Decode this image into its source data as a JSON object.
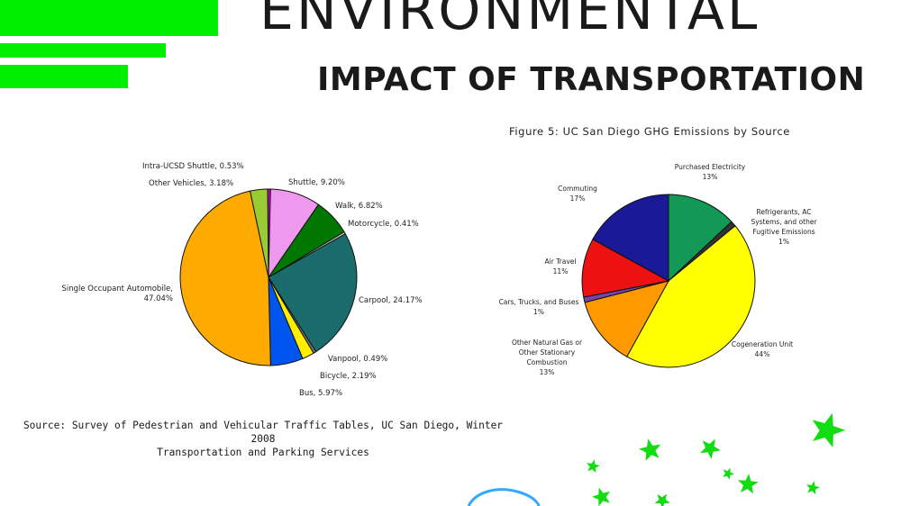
{
  "header": {
    "title": "ENVIRONMENTAL",
    "subtitle": "IMPACT OF TRANSPORTATION",
    "accent_color": "#00ee00"
  },
  "source": {
    "line1": "Source: Survey of Pedestrian and Vehicular Traffic Tables, UC San Diego, Winter 2008",
    "line2": "Transportation and Parking Services"
  },
  "chart_data": [
    {
      "type": "pie",
      "title": "",
      "slices": [
        {
          "label": "Intra-UCSD Shuttle, 0.53%",
          "value": 0.53,
          "color": "#cc00cc"
        },
        {
          "label": "Shuttle, 9.20%",
          "value": 9.2,
          "color": "#ee99ee"
        },
        {
          "label": "Walk, 6.82%",
          "value": 6.82,
          "color": "#007700"
        },
        {
          "label": "Motorcycle, 0.41%",
          "value": 0.41,
          "color": "#cccccc"
        },
        {
          "label": "Carpool, 24.17%",
          "value": 24.17,
          "color": "#1a6b6b"
        },
        {
          "label": "Vanpool, 0.49%",
          "value": 0.49,
          "color": "#777777"
        },
        {
          "label": "Bicycle, 2.19%",
          "value": 2.19,
          "color": "#ffee00"
        },
        {
          "label": "Bus, 5.97%",
          "value": 5.97,
          "color": "#0055ee"
        },
        {
          "label": "Single Occupant Automobile, 47.04%",
          "value": 47.04,
          "color": "#ffaa00"
        },
        {
          "label": "Other Vehicles, 3.18%",
          "value": 3.18,
          "color": "#99cc33"
        }
      ]
    },
    {
      "type": "pie",
      "title": "Figure 5: UC San Diego GHG Emissions by Source",
      "slices": [
        {
          "label": "Purchased Electricity 13%",
          "value": 13,
          "color": "#119955"
        },
        {
          "label": "Refrigerants, AC Systems, and other Fugitive Emissions 1%",
          "value": 1,
          "color": "#333333"
        },
        {
          "label": "Cogeneration Unit 44%",
          "value": 44,
          "color": "#ffff00"
        },
        {
          "label": "Other Natural Gas or Other Stationary Combustion 13%",
          "value": 13,
          "color": "#ff9900"
        },
        {
          "label": "Cars, Trucks, and Buses 1%",
          "value": 1,
          "color": "#7744aa"
        },
        {
          "label": "Air Travel 11%",
          "value": 11,
          "color": "#ee1111"
        },
        {
          "label": "Commuting 17%",
          "value": 17,
          "color": "#1a1a99"
        }
      ]
    }
  ]
}
